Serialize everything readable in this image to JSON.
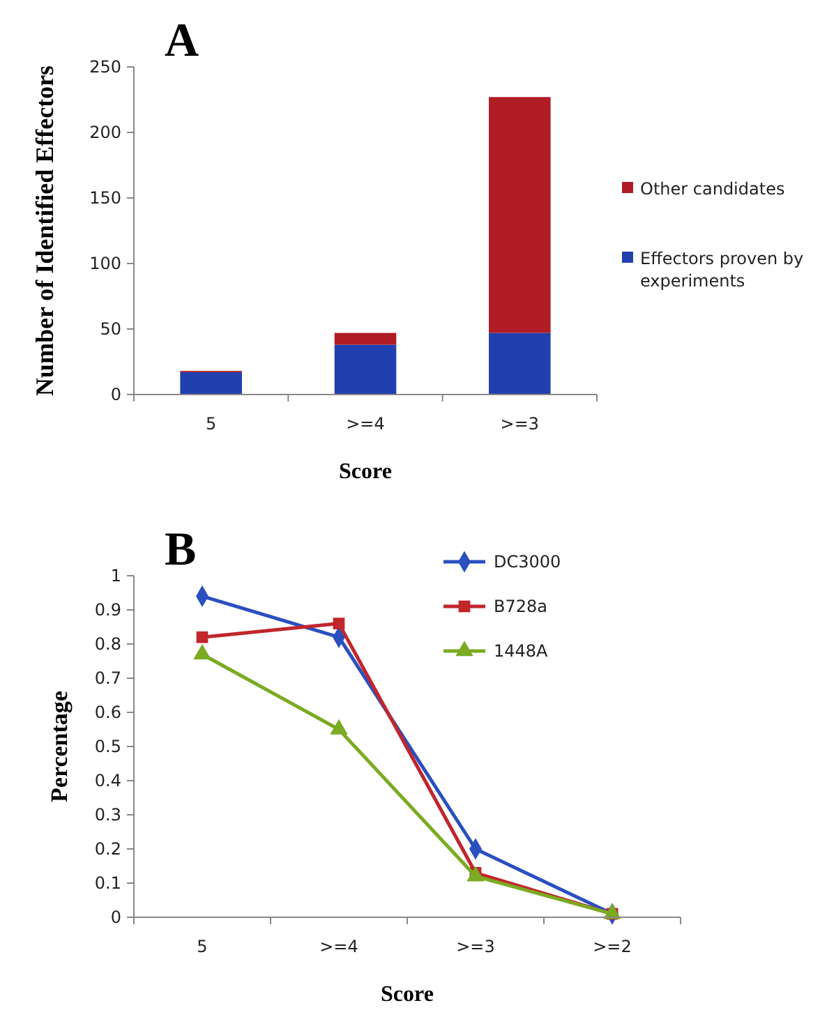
{
  "chart_data": [
    {
      "type": "bar",
      "title": "A",
      "categories": [
        "5",
        ">=4",
        ">=3"
      ],
      "stacked": true,
      "xlabel": "Score",
      "ylabel": "Number of Identified Effectors",
      "ylim": [
        0,
        250
      ],
      "yticks": [
        0,
        50,
        100,
        150,
        200,
        250
      ],
      "grid": false,
      "legend": "right",
      "series": [
        {
          "name": "Effectors proven by experiments",
          "color": "#2040b0",
          "values": [
            17,
            38,
            47
          ]
        },
        {
          "name": "Other candidates",
          "color": "#b01c24",
          "values": [
            1,
            9,
            180
          ]
        }
      ]
    },
    {
      "type": "line",
      "title": "B",
      "categories": [
        "5",
        ">=4",
        ">=3",
        ">=2"
      ],
      "xlabel": "Score",
      "ylabel": "Percentage",
      "ylim": [
        0,
        1
      ],
      "yticks": [
        0,
        0.1,
        0.2,
        0.3,
        0.4,
        0.5,
        0.6,
        0.7,
        0.8,
        0.9,
        1
      ],
      "grid": false,
      "legend": "top right",
      "series": [
        {
          "name": "DC3000",
          "color": "#2a4fc0",
          "marker": "diamond",
          "values": [
            0.94,
            0.82,
            0.2,
            0.01
          ]
        },
        {
          "name": "B728a",
          "color": "#c0262c",
          "marker": "square",
          "values": [
            0.82,
            0.86,
            0.13,
            0.01
          ]
        },
        {
          "name": "1448A",
          "color": "#7aab22",
          "marker": "triangle",
          "values": [
            0.77,
            0.55,
            0.12,
            0.01
          ]
        }
      ]
    }
  ]
}
